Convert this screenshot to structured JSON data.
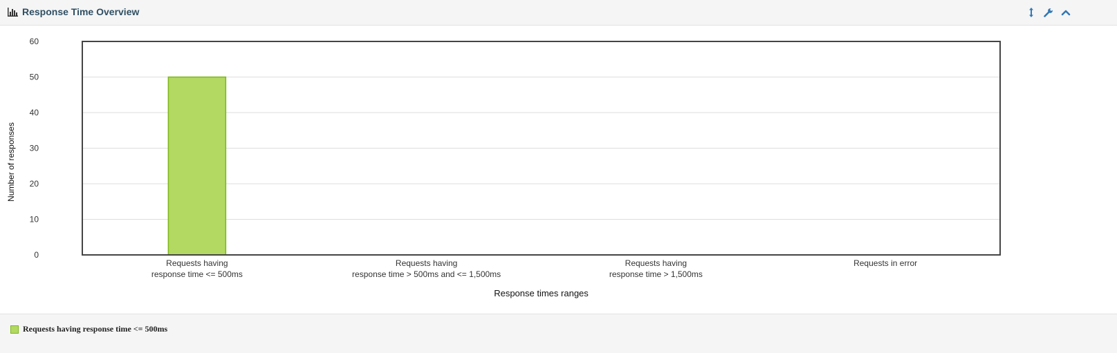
{
  "panel": {
    "title": "Response Time Overview",
    "title_icon": "bar-chart-icon",
    "tools": [
      {
        "name": "resize-icon"
      },
      {
        "name": "wrench-icon"
      },
      {
        "name": "collapse-chevron-up-icon"
      }
    ],
    "accent_color": "#3278b4"
  },
  "chart_data": {
    "type": "bar",
    "xlabel": "Response times ranges",
    "ylabel": "Number of responses",
    "ylim": [
      0,
      60
    ],
    "yticks": [
      0,
      10,
      20,
      30,
      40,
      50,
      60
    ],
    "grid": true,
    "categories": [
      [
        "Requests having",
        "response time <= 500ms"
      ],
      [
        "Requests having",
        "response time > 500ms and <= 1,500ms"
      ],
      [
        "Requests having",
        "response time > 1,500ms"
      ],
      [
        "Requests in error"
      ]
    ],
    "series": [
      {
        "name": "Requests having response time <= 500ms",
        "color": "#b3d962",
        "border_color": "#7cb719",
        "values": [
          50,
          0,
          0,
          0
        ]
      }
    ],
    "legend": {
      "placement": "bottom-left"
    }
  }
}
